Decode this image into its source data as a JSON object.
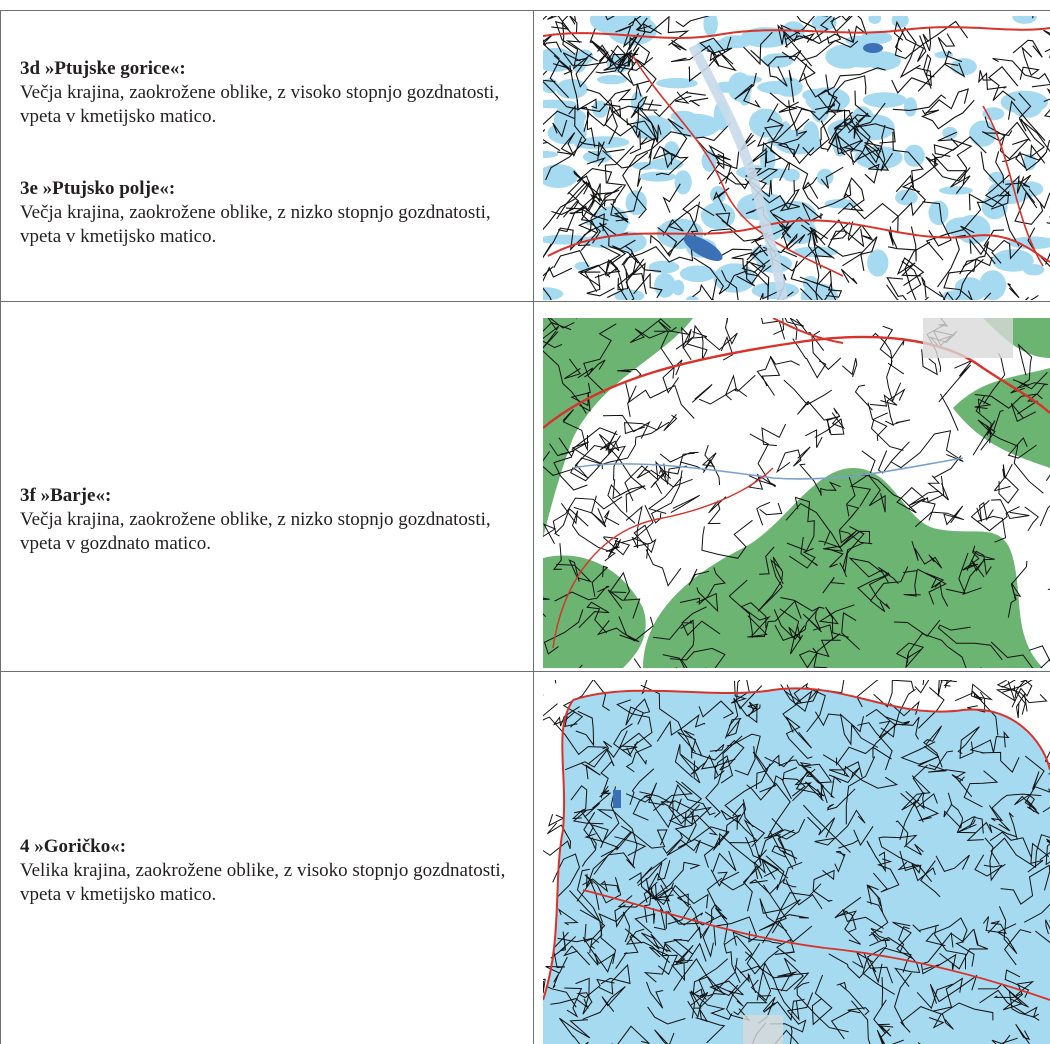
{
  "rows": [
    {
      "entries": [
        {
          "title": "3d »Ptujske gorice«:",
          "desc": "Večja krajina, zaokrožene oblike, z visoko stopnjo gozdnatosti, vpeta v kmetijsko matico."
        },
        {
          "title": "3e »Ptujsko polje«:",
          "desc": "Večja krajina, zaokrožene oblike, z nizko stopnjo gozdnatosti, vpeta v kmetijsko matico."
        }
      ],
      "map_icon": "landscape-map-ptuj-icon"
    },
    {
      "entries": [
        {
          "title": "3f »Barje«:",
          "desc": "Večja krajina, zaokrožene oblike, z nizko stopnjo gozdnatosti, vpeta v gozdnato matico."
        }
      ],
      "map_icon": "landscape-map-barje-icon"
    },
    {
      "entries": [
        {
          "title": "4 »Goričko«:",
          "desc": "Velika krajina, zaokrožene oblike, z visoko stopnjo gozdnatosti, vpeta v kmetijsko matico."
        }
      ],
      "map_icon": "landscape-map-goricko-icon"
    }
  ],
  "colors": {
    "forest_blue": "#a6daf0",
    "forest_green": "#6cb472",
    "boundary_red": "#d8332b",
    "road_black": "#111111",
    "water_blue": "#3b6fb6",
    "border_gray": "#6d6e71"
  }
}
